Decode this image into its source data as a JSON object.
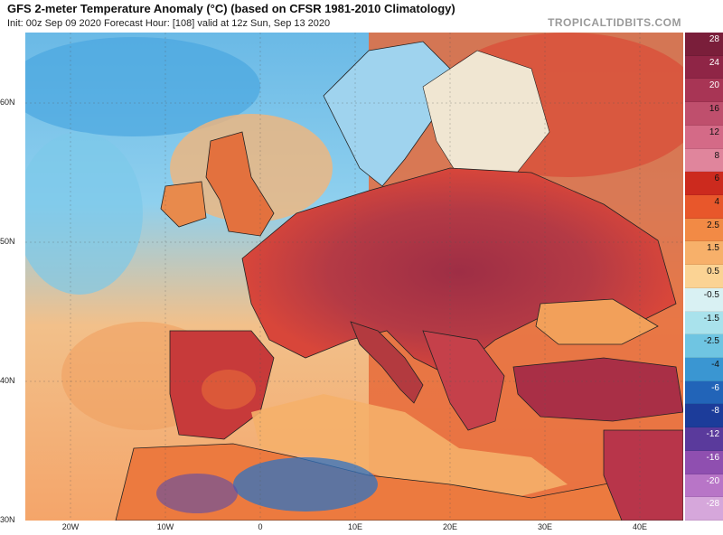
{
  "header": {
    "title": "GFS 2-meter Temperature Anomaly (°C) (based on CFSR 1981-2010 Climatology)",
    "subtitle": "Init: 00z Sep 09 2020   Forecast Hour: [108]   valid at 12z Sun, Sep 13 2020",
    "brand": "TROPICALTIDBITS.COM"
  },
  "axes": {
    "lat_labels": [
      "60N",
      "50N",
      "40N",
      "30N"
    ],
    "lon_labels": [
      "20W",
      "10W",
      "0",
      "10E",
      "20E",
      "30E",
      "40E"
    ]
  },
  "colorbar": {
    "labels": [
      "28",
      "24",
      "20",
      "16",
      "12",
      "8",
      "6",
      "4",
      "2.5",
      "1.5",
      "0.5",
      "-0.5",
      "-1.5",
      "-2.5",
      "-4",
      "-6",
      "-8",
      "-12",
      "-16",
      "-20",
      "-28"
    ],
    "colors": [
      "#7a1e3a",
      "#8f2546",
      "#a83555",
      "#bf4f6d",
      "#d46a87",
      "#e0859c",
      "#cc2a1e",
      "#e8572b",
      "#f28a45",
      "#f7b06a",
      "#fbd394",
      "#d9f1f3",
      "#a9e2ec",
      "#6fc5e2",
      "#3a96d2",
      "#2264b8",
      "#1c3c9a",
      "#5a3a9c",
      "#8f4fb0",
      "#b875c7",
      "#d6a7db"
    ]
  },
  "map": {
    "palette": {
      "ocean_warm": "#f4b073",
      "ocean_cool": "#7fc7ea",
      "land_hot": "#9e2e45",
      "land_warm": "#d8463a",
      "land_mild": "#ee7a3c",
      "scandinavia_cool": "#9fd3ee",
      "africa_cool": "#2f73c2"
    }
  }
}
